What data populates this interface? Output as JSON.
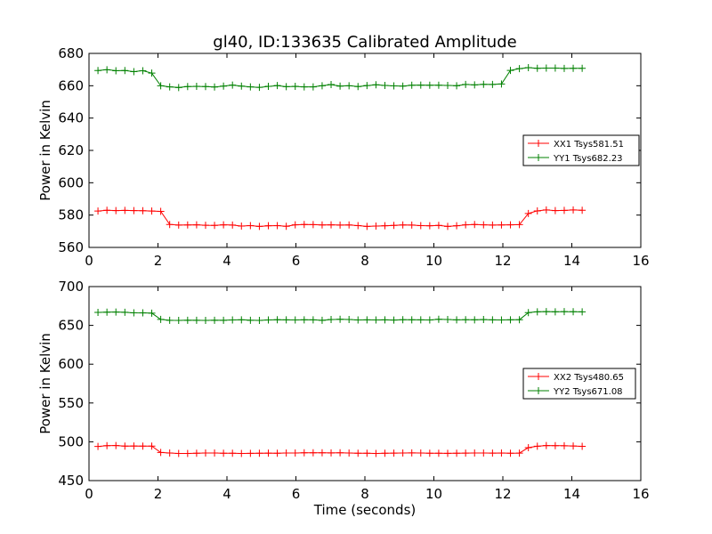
{
  "figure_title": "gl40, ID:133635 Calibrated Amplitude",
  "chart_data": [
    {
      "type": "line",
      "title": "gl40, ID:133635 Calibrated Amplitude",
      "xlabel": "",
      "ylabel": "Power in Kelvin",
      "xlim": [
        0,
        16
      ],
      "ylim": [
        560,
        680
      ],
      "xticks": [
        0,
        2,
        4,
        6,
        8,
        10,
        12,
        14,
        16
      ],
      "yticks": [
        560,
        580,
        600,
        620,
        640,
        660,
        680
      ],
      "grid": false,
      "legend_position": "center-right",
      "x": [
        0.26,
        0.52,
        0.78,
        1.04,
        1.3,
        1.56,
        1.82,
        2.08,
        2.34,
        2.6,
        2.86,
        3.12,
        3.38,
        3.64,
        3.9,
        4.16,
        4.42,
        4.68,
        4.94,
        5.2,
        5.46,
        5.72,
        5.98,
        6.24,
        6.5,
        6.76,
        7.02,
        7.28,
        7.54,
        7.8,
        8.06,
        8.32,
        8.58,
        8.84,
        9.1,
        9.36,
        9.62,
        9.88,
        10.14,
        10.4,
        10.66,
        10.92,
        11.18,
        11.44,
        11.7,
        11.96,
        12.22,
        12.48,
        12.74,
        13.0,
        13.26,
        13.52,
        13.78,
        14.04,
        14.3
      ],
      "series": [
        {
          "name": "XX1 Tsys581.51",
          "color": "#ff0000",
          "values": [
            582.5,
            583,
            582.8,
            582.9,
            582.8,
            582.7,
            582.5,
            582.3,
            574.2,
            573.8,
            573.9,
            574.0,
            573.7,
            573.6,
            574.0,
            573.8,
            573.2,
            573.5,
            573.0,
            573.4,
            573.5,
            573.1,
            574.0,
            574.2,
            574.1,
            573.9,
            574.0,
            573.8,
            573.9,
            573.5,
            573.0,
            573.2,
            573.4,
            573.6,
            573.9,
            573.8,
            573.5,
            573.4,
            573.6,
            573.0,
            573.4,
            574.0,
            574.2,
            574.0,
            573.8,
            573.9,
            574.0,
            574.1,
            581.0,
            582.6,
            583.2,
            582.8,
            582.9,
            583.2,
            583.0
          ]
        },
        {
          "name": "YY1 Tsys682.23",
          "color": "#008000",
          "values": [
            669.4,
            669.9,
            669.3,
            669.4,
            668.7,
            669.3,
            667.8,
            660.0,
            659.3,
            658.9,
            659.5,
            659.6,
            659.5,
            659.2,
            659.8,
            660.4,
            659.8,
            659.3,
            659.0,
            659.6,
            660.1,
            659.4,
            659.6,
            659.3,
            659.3,
            660.0,
            660.7,
            659.8,
            660.0,
            659.5,
            660.1,
            660.6,
            660.2,
            659.9,
            659.8,
            660.3,
            660.4,
            660.3,
            660.3,
            660.2,
            660.0,
            660.8,
            660.5,
            660.9,
            660.8,
            661.1,
            669.5,
            670.6,
            671.2,
            670.8,
            670.9,
            670.9,
            670.7,
            670.8,
            670.8
          ]
        }
      ]
    },
    {
      "type": "line",
      "title": "",
      "xlabel": "Time (seconds)",
      "ylabel": "Power in Kelvin",
      "xlim": [
        0,
        16
      ],
      "ylim": [
        450,
        700
      ],
      "xticks": [
        0,
        2,
        4,
        6,
        8,
        10,
        12,
        14,
        16
      ],
      "yticks": [
        450,
        500,
        550,
        600,
        650,
        700
      ],
      "grid": false,
      "legend_position": "center-right",
      "x": [
        0.26,
        0.52,
        0.78,
        1.04,
        1.3,
        1.56,
        1.82,
        2.08,
        2.34,
        2.6,
        2.86,
        3.12,
        3.38,
        3.64,
        3.9,
        4.16,
        4.42,
        4.68,
        4.94,
        5.2,
        5.46,
        5.72,
        5.98,
        6.24,
        6.5,
        6.76,
        7.02,
        7.28,
        7.54,
        7.8,
        8.06,
        8.32,
        8.58,
        8.84,
        9.1,
        9.36,
        9.62,
        9.88,
        10.14,
        10.4,
        10.66,
        10.92,
        11.18,
        11.44,
        11.7,
        11.96,
        12.22,
        12.48,
        12.74,
        13.0,
        13.26,
        13.52,
        13.78,
        14.04,
        14.3
      ],
      "series": [
        {
          "name": "XX2 Tsys480.65",
          "color": "#ff0000",
          "values": [
            494.0,
            495.0,
            495.2,
            494.5,
            494.6,
            494.4,
            494.5,
            486.2,
            485.5,
            485.0,
            485.0,
            485.2,
            485.5,
            485.6,
            485.3,
            485.2,
            485.0,
            485.1,
            485.3,
            485.4,
            485.2,
            485.5,
            485.6,
            485.9,
            485.8,
            485.9,
            485.7,
            485.8,
            485.5,
            485.2,
            485.3,
            485.0,
            485.2,
            485.4,
            485.6,
            485.7,
            485.5,
            485.3,
            485.2,
            485.1,
            485.3,
            485.4,
            485.6,
            485.5,
            485.4,
            485.5,
            485.3,
            485.4,
            492.5,
            494.3,
            495.2,
            495.0,
            494.9,
            494.6,
            494.1
          ]
        },
        {
          "name": "YY2 Tsys671.08",
          "color": "#008000",
          "values": [
            666.8,
            667.0,
            667.2,
            666.9,
            666.2,
            666.1,
            665.8,
            657.7,
            656.5,
            656.4,
            656.6,
            656.5,
            656.4,
            656.6,
            656.5,
            657.0,
            657.2,
            656.6,
            656.4,
            657.0,
            657.3,
            657.1,
            657.0,
            657.2,
            657.1,
            656.5,
            657.5,
            657.8,
            657.6,
            657.0,
            657.1,
            657.0,
            657.1,
            656.9,
            657.3,
            657.2,
            657.1,
            657.0,
            657.8,
            657.6,
            657.1,
            657.3,
            657.2,
            657.5,
            657.1,
            657.0,
            657.2,
            657.3,
            666.5,
            667.5,
            667.8,
            667.5,
            667.7,
            667.6,
            667.4
          ]
        }
      ]
    }
  ]
}
